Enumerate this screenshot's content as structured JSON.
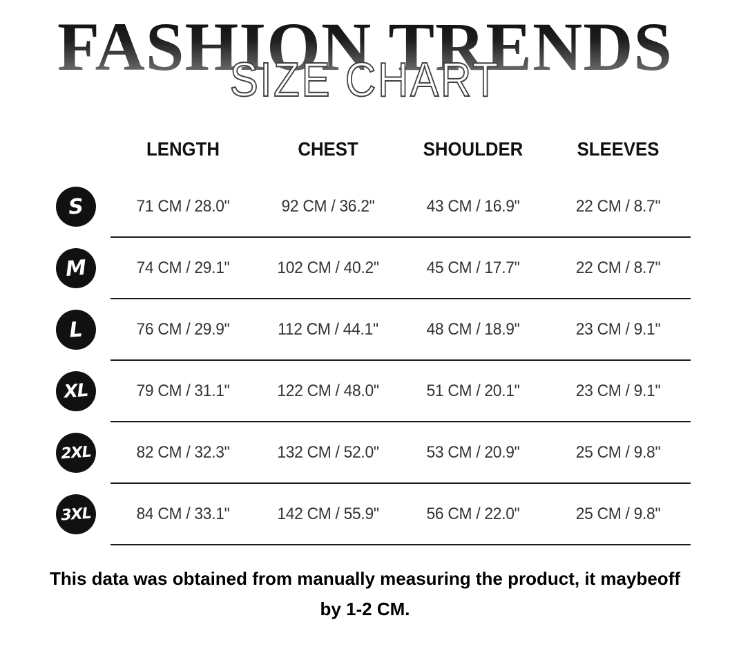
{
  "page": {
    "background": "#ffffff"
  },
  "header": {
    "brand_title": "FASHION TRENDS",
    "subtitle": "SIZE CHART",
    "title_gradient_top": "#0c0c0c",
    "title_gradient_bottom": "#828282",
    "subtitle_fill": "#ffffff",
    "subtitle_outline": "#3f3f3f"
  },
  "size_table": {
    "badge_bg": "#111111",
    "badge_text_color": "#ffffff",
    "columns": [
      "LENGTH",
      "CHEST",
      "SHOULDER",
      "SLEEVES"
    ],
    "rows": [
      {
        "size": "S",
        "length": "71 CM / 28.0\"",
        "chest": "92 CM / 36.2\"",
        "shoulder": "43 CM / 16.9\"",
        "sleeves": "22 CM / 8.7\""
      },
      {
        "size": "M",
        "length": "74 CM / 29.1\"",
        "chest": "102 CM / 40.2\"",
        "shoulder": "45 CM / 17.7\"",
        "sleeves": "22 CM / 8.7\""
      },
      {
        "size": "L",
        "length": "76 CM / 29.9\"",
        "chest": "112 CM / 44.1\"",
        "shoulder": "48 CM / 18.9\"",
        "sleeves": "23 CM / 9.1\""
      },
      {
        "size": "XL",
        "length": "79 CM / 31.1\"",
        "chest": "122 CM / 48.0\"",
        "shoulder": "51 CM / 20.1\"",
        "sleeves": "23 CM / 9.1\""
      },
      {
        "size": "2XL",
        "length": "82 CM / 32.3\"",
        "chest": "132 CM / 52.0\"",
        "shoulder": "53 CM / 20.9\"",
        "sleeves": "25 CM / 9.8\""
      },
      {
        "size": "3XL",
        "length": "84 CM / 33.1\"",
        "chest": "142 CM / 55.9\"",
        "shoulder": "56 CM / 22.0\"",
        "sleeves": "25 CM / 9.8\""
      }
    ]
  },
  "footer": {
    "note_line1": "This data was obtained from manually measuring the product, it maybeoff",
    "note_line2": "by 1-2 CM."
  }
}
